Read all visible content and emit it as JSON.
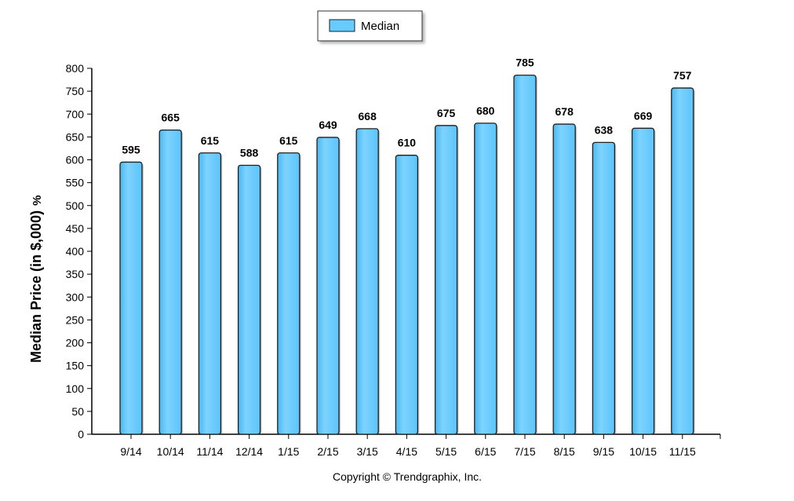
{
  "chart_data": {
    "type": "bar",
    "categories": [
      "9/14",
      "10/14",
      "11/14",
      "12/14",
      "1/15",
      "2/15",
      "3/15",
      "4/15",
      "5/15",
      "6/15",
      "7/15",
      "8/15",
      "9/15",
      "10/15",
      "11/15"
    ],
    "series": [
      {
        "name": "Median",
        "values": [
          595,
          665,
          615,
          588,
          615,
          649,
          668,
          610,
          675,
          680,
          785,
          678,
          638,
          669,
          757
        ]
      }
    ],
    "ylabel": "Median Price (in $,000)",
    "ylabel_suffix": "%",
    "xlabel": "",
    "ylim": [
      0,
      800
    ],
    "yticks": [
      0,
      50,
      100,
      150,
      200,
      250,
      300,
      350,
      400,
      450,
      500,
      550,
      600,
      650,
      700,
      750,
      800
    ],
    "legend_position": "top-center",
    "grid": false,
    "data_labels": true,
    "bar_color": "#66ccff",
    "bar_stroke": "#1f1f1f"
  },
  "footer": {
    "copyright": "Copyright © Trendgraphix, Inc."
  }
}
